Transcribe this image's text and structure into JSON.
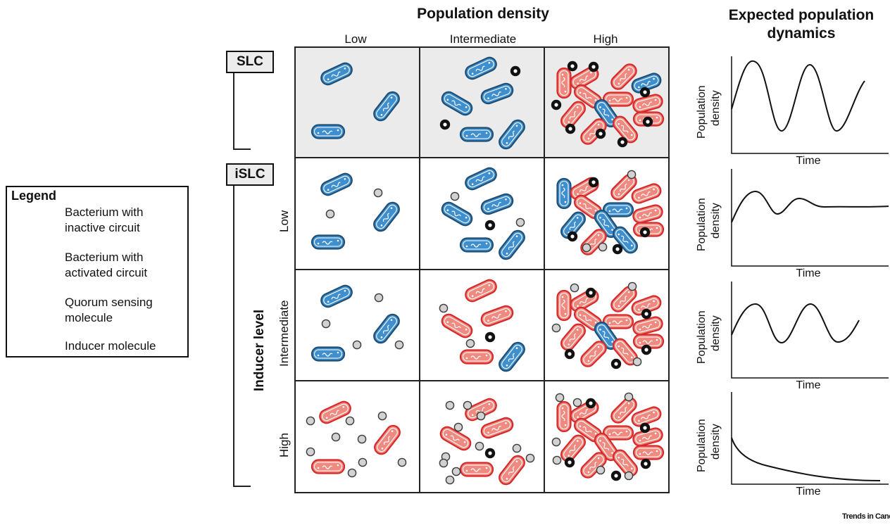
{
  "header": {
    "population_density": "Population density",
    "columns": [
      "Low",
      "Intermediate",
      "High"
    ],
    "dynamics_title_line1": "Expected population",
    "dynamics_title_line2": "dynamics"
  },
  "circuits": {
    "slc": "SLC",
    "islc": "iSLC"
  },
  "inducer": {
    "axis_label": "Inducer level",
    "rows": [
      "Low",
      "Intermediate",
      "High"
    ]
  },
  "legend": {
    "title": "Legend",
    "items": [
      {
        "icon": "inactive-bacterium-icon",
        "line1": "Bacterium with",
        "line2": "inactive circuit"
      },
      {
        "icon": "activated-bacterium-icon",
        "line1": "Bacterium with",
        "line2": "activated circuit"
      },
      {
        "icon": "quorum-sensing-molecule-icon",
        "line1": "Quorum sensing",
        "line2": "molecule"
      },
      {
        "icon": "inducer-molecule-icon",
        "line1": "Inducer molecule",
        "line2": ""
      }
    ]
  },
  "plots": {
    "ylabel_line1": "Population",
    "ylabel_line2": "density",
    "xlabel": "Time"
  },
  "colors": {
    "inactive_fill": "#3f8fce",
    "inactive_stroke": "#1f4f75",
    "active_fill": "#ef8a80",
    "active_stroke": "#d62a2a",
    "shaded_panel": "#ebebeb"
  },
  "footer": {
    "credit": "Trends in Cancer"
  }
}
